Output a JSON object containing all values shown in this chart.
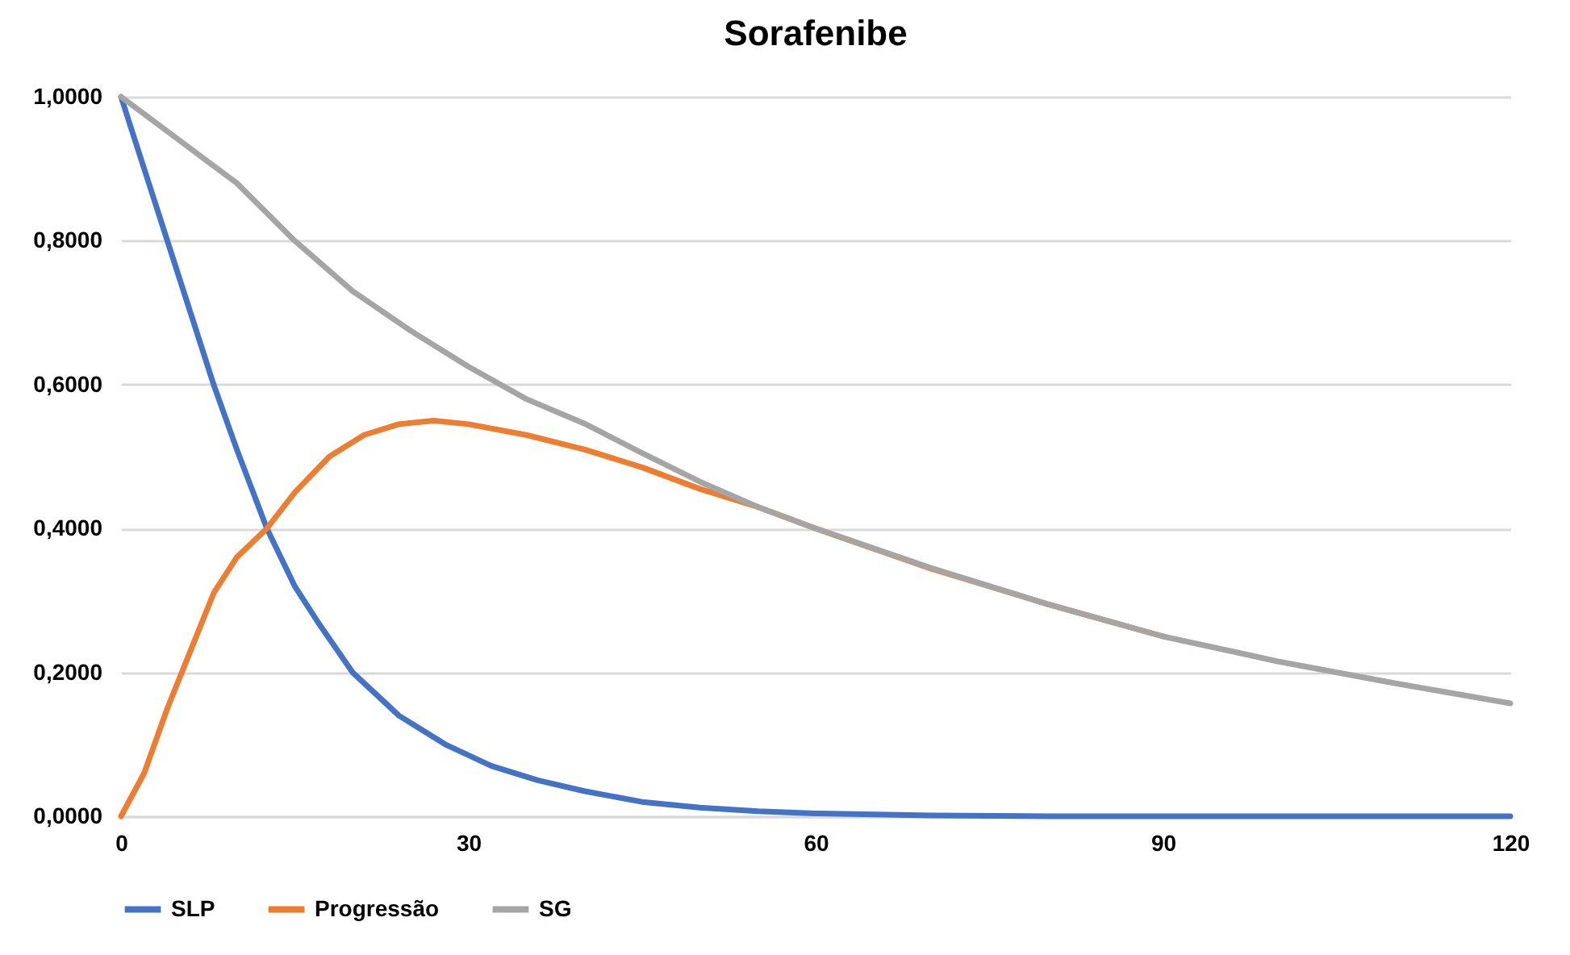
{
  "chart_data": {
    "type": "line",
    "title": "Sorafenibe",
    "series": [
      {
        "name": "SLP",
        "color": "#4472c4",
        "x": [
          0,
          2,
          4,
          6,
          8,
          10,
          12.6,
          15,
          17,
          20,
          24,
          28,
          32,
          36,
          40,
          45,
          50,
          55,
          60,
          70,
          80,
          120
        ],
        "values": [
          1,
          0.9,
          0.8,
          0.7,
          0.6,
          0.51,
          0.4,
          0.32,
          0.27,
          0.2,
          0.14,
          0.1,
          0.07,
          0.05,
          0.035,
          0.02,
          0.012,
          0.007,
          0.004,
          0.001,
          0,
          0
        ]
      },
      {
        "name": "Progressão",
        "color": "#ed7d31",
        "x": [
          0,
          2,
          4,
          6,
          8,
          10,
          12.6,
          15,
          18,
          21,
          24,
          27,
          30,
          35,
          40,
          45,
          50,
          55,
          60,
          70,
          80,
          90
        ],
        "values": [
          0,
          0.06,
          0.15,
          0.23,
          0.31,
          0.36,
          0.4,
          0.45,
          0.5,
          0.53,
          0.545,
          0.55,
          0.545,
          0.53,
          0.51,
          0.485,
          0.455,
          0.43,
          0.4,
          0.344,
          0.295,
          0.25
        ]
      },
      {
        "name": "SG",
        "color": "#a5a5a5",
        "x": [
          0,
          5,
          10,
          15,
          20,
          25,
          30,
          35,
          40,
          45,
          50,
          55,
          60,
          70,
          80,
          90,
          100,
          110,
          120
        ],
        "values": [
          1,
          0.94,
          0.88,
          0.8,
          0.73,
          0.675,
          0.625,
          0.58,
          0.546,
          0.505,
          0.465,
          0.43,
          0.4,
          0.345,
          0.295,
          0.25,
          0.215,
          0.185,
          0.157
        ]
      }
    ],
    "xlim": [
      0,
      120
    ],
    "xticks": [
      0,
      30,
      60,
      90,
      120
    ],
    "ylim": [
      0,
      1
    ],
    "yticks": [
      {
        "value": 0,
        "label": "0,0000"
      },
      {
        "value": 0.2,
        "label": "0,2000"
      },
      {
        "value": 0.4,
        "label": "0,4000"
      },
      {
        "value": 0.6,
        "label": "0,6000"
      },
      {
        "value": 0.8,
        "label": "0,8000"
      },
      {
        "value": 1,
        "label": "1,0000"
      }
    ],
    "grid": "y",
    "legend": "bottom",
    "line_style": "solid",
    "marker": "none"
  }
}
